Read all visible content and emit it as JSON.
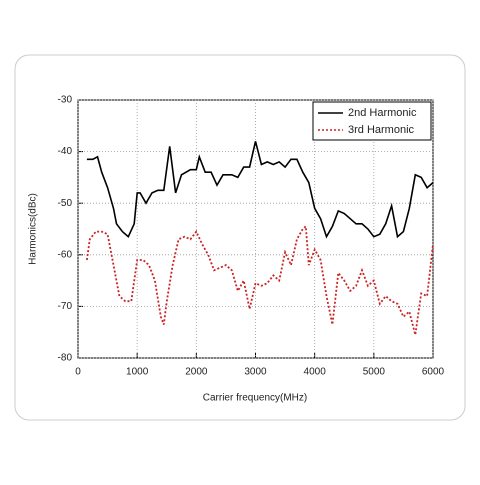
{
  "chart_data": {
    "type": "line",
    "xlabel": "Carrier frequency(MHz)",
    "ylabel": "Harmonics(dBc)",
    "xlim": [
      0,
      6000
    ],
    "xticks": [
      0,
      1000,
      2000,
      3000,
      4000,
      5000,
      6000
    ],
    "ylim": [
      -80,
      -30
    ],
    "yticks": [
      -80,
      -70,
      -60,
      -50,
      -40,
      -30
    ],
    "grid": true,
    "legend": "upper right",
    "series": [
      {
        "name": "2nd Harmonic",
        "color": "#000000",
        "style": "solid",
        "x": [
          150,
          250,
          330,
          400,
          500,
          600,
          650,
          750,
          850,
          950,
          1000,
          1050,
          1150,
          1250,
          1350,
          1450,
          1550,
          1650,
          1750,
          1900,
          2000,
          2050,
          2150,
          2250,
          2350,
          2450,
          2600,
          2700,
          2800,
          2900,
          3000,
          3100,
          3200,
          3300,
          3400,
          3500,
          3600,
          3700,
          3800,
          3900,
          4000,
          4100,
          4200,
          4300,
          4400,
          4500,
          4600,
          4700,
          4800,
          4900,
          5000,
          5100,
          5200,
          5300,
          5400,
          5500,
          5600,
          5700,
          5800,
          5900,
          6000
        ],
        "values": [
          -41.5,
          -41.5,
          -41,
          -44,
          -47,
          -51,
          -54,
          -55.5,
          -56.5,
          -54,
          -48,
          -48,
          -50,
          -48,
          -47.5,
          -47.5,
          -39,
          -48,
          -44.5,
          -43.5,
          -43.5,
          -41,
          -44,
          -44,
          -46.5,
          -44.5,
          -44.5,
          -45,
          -43,
          -43,
          -38,
          -42.5,
          -42,
          -42.5,
          -42,
          -43,
          -41.5,
          -41.5,
          -44,
          -46,
          -51,
          -53,
          -56.5,
          -54.5,
          -51.5,
          -52,
          -53,
          -54,
          -54,
          -55,
          -56.5,
          -56,
          -54,
          -50.5,
          -56.5,
          -55.5,
          -51,
          -44.5,
          -45,
          -47,
          -46
        ]
      },
      {
        "name": "3rd Harmonic",
        "color": "#cc2222",
        "style": "dotted",
        "x": [
          150,
          200,
          300,
          400,
          500,
          600,
          700,
          800,
          900,
          1000,
          1100,
          1200,
          1300,
          1400,
          1450,
          1500,
          1600,
          1700,
          1800,
          1900,
          2000,
          2100,
          2200,
          2300,
          2400,
          2500,
          2600,
          2700,
          2800,
          2900,
          3000,
          3100,
          3200,
          3300,
          3400,
          3500,
          3600,
          3700,
          3800,
          3850,
          3900,
          4000,
          4100,
          4200,
          4300,
          4400,
          4500,
          4600,
          4700,
          4800,
          4900,
          5000,
          5100,
          5200,
          5300,
          5400,
          5500,
          5600,
          5700,
          5800,
          5900,
          6000
        ],
        "values": [
          -61,
          -57,
          -55.5,
          -55.5,
          -56,
          -62,
          -68,
          -69,
          -69,
          -61,
          -61,
          -62,
          -65,
          -72,
          -73.5,
          -69,
          -62,
          -57,
          -56.5,
          -57,
          -55.5,
          -58,
          -60,
          -63,
          -62.5,
          -62,
          -63,
          -67,
          -65,
          -70.5,
          -65.5,
          -66,
          -65.5,
          -64,
          -65,
          -59.5,
          -62,
          -57,
          -55,
          -54.5,
          -62,
          -59,
          -61,
          -68,
          -73.5,
          -63.5,
          -65,
          -67,
          -66,
          -63,
          -66,
          -65,
          -69.5,
          -68,
          -69,
          -69.5,
          -72,
          -71,
          -75.5,
          -67.5,
          -68,
          -58
        ]
      }
    ]
  }
}
